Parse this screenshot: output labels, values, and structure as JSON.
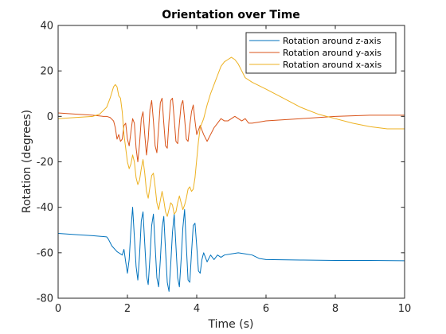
{
  "chart_data": {
    "type": "line",
    "title": "Orientation over Time",
    "xlabel": "Time (s)",
    "ylabel": "Rotation (degrees)",
    "xlim": [
      0,
      10
    ],
    "ylim": [
      -80,
      40
    ],
    "xticks": [
      0,
      2,
      4,
      6,
      8,
      10
    ],
    "yticks": [
      -80,
      -60,
      -40,
      -20,
      0,
      20,
      40
    ],
    "grid": false,
    "legend_position": "top-right",
    "series": [
      {
        "name": "Rotation around z-axis",
        "color": "#0072BD",
        "x": [
          0,
          0.5,
          1.0,
          1.4,
          1.45,
          1.55,
          1.7,
          1.8,
          1.85,
          1.9,
          1.95,
          2.0,
          2.05,
          2.1,
          2.15,
          2.2,
          2.25,
          2.3,
          2.35,
          2.4,
          2.45,
          2.5,
          2.55,
          2.6,
          2.65,
          2.7,
          2.75,
          2.8,
          2.85,
          2.9,
          2.95,
          3.0,
          3.05,
          3.1,
          3.15,
          3.2,
          3.25,
          3.3,
          3.35,
          3.4,
          3.45,
          3.5,
          3.55,
          3.6,
          3.65,
          3.7,
          3.75,
          3.8,
          3.85,
          3.9,
          3.95,
          4.0,
          4.05,
          4.1,
          4.15,
          4.2,
          4.3,
          4.4,
          4.5,
          4.6,
          4.7,
          4.8,
          5.0,
          5.2,
          5.4,
          5.6,
          5.8,
          6.0,
          7.0,
          8.0,
          9.0,
          10.0
        ],
        "y": [
          -51.5,
          -52,
          -52.5,
          -53,
          -54,
          -57,
          -59.5,
          -60.5,
          -61,
          -58.5,
          -64,
          -69,
          -63,
          -50,
          -40,
          -53,
          -66,
          -72,
          -61,
          -46,
          -42,
          -56,
          -70,
          -74,
          -62,
          -48,
          -43,
          -57,
          -71,
          -75,
          -63,
          -49,
          -44,
          -59,
          -73,
          -77,
          -65,
          -51,
          -43,
          -57,
          -71,
          -75,
          -63,
          -49,
          -41,
          -57,
          -72,
          -73,
          -60,
          -48,
          -47,
          -57,
          -68,
          -69,
          -63,
          -60,
          -64,
          -61,
          -63,
          -61,
          -62,
          -61,
          -60.5,
          -60,
          -60.5,
          -61,
          -62.5,
          -63,
          -63.2,
          -63.4,
          -63.4,
          -63.5
        ]
      },
      {
        "name": "Rotation around y-axis",
        "color": "#D95319",
        "x": [
          0,
          0.5,
          1.0,
          1.3,
          1.4,
          1.5,
          1.6,
          1.65,
          1.7,
          1.75,
          1.8,
          1.85,
          1.9,
          1.95,
          2.0,
          2.05,
          2.1,
          2.15,
          2.2,
          2.25,
          2.3,
          2.35,
          2.4,
          2.45,
          2.5,
          2.55,
          2.6,
          2.65,
          2.7,
          2.75,
          2.8,
          2.85,
          2.9,
          2.95,
          3.0,
          3.05,
          3.1,
          3.15,
          3.2,
          3.25,
          3.3,
          3.35,
          3.4,
          3.45,
          3.5,
          3.55,
          3.6,
          3.65,
          3.7,
          3.75,
          3.8,
          3.85,
          3.9,
          3.95,
          4.0,
          4.05,
          4.1,
          4.2,
          4.3,
          4.4,
          4.5,
          4.6,
          4.7,
          4.8,
          4.9,
          5.0,
          5.1,
          5.2,
          5.3,
          5.4,
          5.5,
          5.6,
          5.8,
          6.0,
          7.0,
          8.0,
          9.0,
          10.0
        ],
        "y": [
          1.5,
          1,
          0.5,
          0,
          0,
          -0.5,
          -2,
          -5,
          -10,
          -8,
          -11,
          -10,
          -4,
          -3,
          -10,
          -13,
          -7,
          -1,
          -3,
          -14,
          -20,
          -12,
          -1,
          2,
          -8,
          -17,
          -10,
          3,
          7,
          -2,
          -13,
          -16,
          -5,
          6,
          8,
          -3,
          -13,
          -14,
          -2,
          7,
          8,
          -1,
          -11,
          -12,
          -3,
          5,
          7,
          -1,
          -10,
          -11,
          -4,
          2,
          5,
          -2,
          -8,
          -6,
          -4,
          -8,
          -11,
          -8,
          -5,
          -3,
          -1,
          -2,
          -2,
          -1,
          0,
          -1,
          -2,
          -1,
          -3,
          -3,
          -2.5,
          -2,
          -1,
          0,
          0.5,
          0.5
        ]
      },
      {
        "name": "Rotation around x-axis",
        "color": "#EDB120",
        "x": [
          0,
          0.5,
          1.0,
          1.2,
          1.4,
          1.5,
          1.6,
          1.65,
          1.7,
          1.75,
          1.8,
          1.85,
          1.9,
          1.95,
          2.0,
          2.05,
          2.1,
          2.15,
          2.2,
          2.25,
          2.3,
          2.35,
          2.4,
          2.45,
          2.5,
          2.55,
          2.6,
          2.65,
          2.7,
          2.75,
          2.8,
          2.85,
          2.9,
          2.95,
          3.0,
          3.05,
          3.1,
          3.15,
          3.2,
          3.25,
          3.3,
          3.35,
          3.4,
          3.45,
          3.5,
          3.55,
          3.6,
          3.65,
          3.7,
          3.75,
          3.8,
          3.85,
          3.9,
          3.95,
          4.0,
          4.05,
          4.1,
          4.2,
          4.3,
          4.4,
          4.5,
          4.6,
          4.7,
          4.8,
          4.9,
          5.0,
          5.1,
          5.2,
          5.3,
          5.4,
          5.6,
          6.0,
          6.5,
          7.0,
          7.5,
          8.0,
          8.5,
          9.0,
          9.5,
          10.0
        ],
        "y": [
          -1,
          -0.5,
          0,
          1,
          4,
          8,
          13,
          14,
          13,
          9,
          8,
          2,
          -8,
          -14,
          -20,
          -23,
          -21,
          -17,
          -20,
          -27,
          -30,
          -28,
          -23,
          -19,
          -25,
          -33,
          -36,
          -31,
          -26,
          -25,
          -31,
          -38,
          -41,
          -37,
          -33,
          -37,
          -42,
          -44,
          -41,
          -38,
          -39,
          -43,
          -42,
          -38,
          -35,
          -38,
          -41,
          -39,
          -36,
          -32,
          -31,
          -33,
          -32,
          -27,
          -19,
          -11,
          -5,
          -1,
          5,
          10,
          14,
          18,
          22,
          24,
          25,
          26,
          25,
          23,
          20,
          17,
          15,
          12,
          8,
          4,
          1,
          -1,
          -3,
          -4.5,
          -5.5,
          -5.5
        ]
      }
    ]
  }
}
